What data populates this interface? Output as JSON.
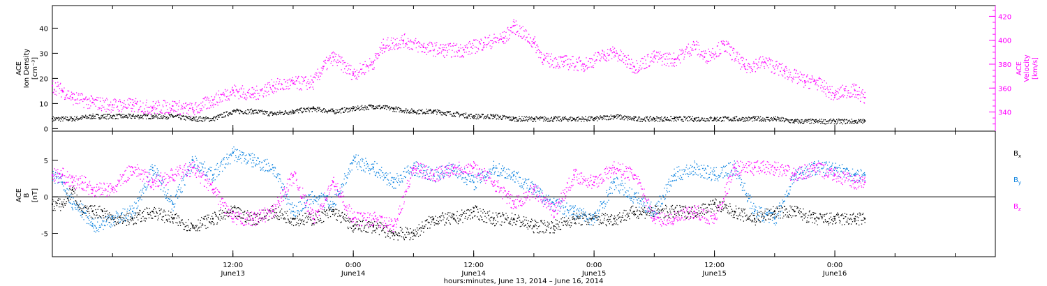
{
  "colors": {
    "magenta": "#ff00ff",
    "blue": "#0a82e0",
    "black": "#000000",
    "axis": "#000000"
  },
  "xaxis": {
    "title": "hours:minutes, June 13, 2014 – June 16, 2014",
    "range_hours": [
      0,
      94
    ],
    "unit": "hours since June 12, 2014 18:00",
    "ticks": [
      {
        "t": 18,
        "time": "12:00",
        "day": "June13"
      },
      {
        "t": 30,
        "time": "0:00",
        "day": "June14"
      },
      {
        "t": 42,
        "time": "12:00",
        "day": "June14"
      },
      {
        "t": 54,
        "time": "0:00",
        "day": "June15"
      },
      {
        "t": 66,
        "time": "12:00",
        "day": "June15"
      },
      {
        "t": 78,
        "time": "0:00",
        "day": "June16"
      }
    ]
  },
  "chart_data": [
    {
      "type": "scatter",
      "panel": "top",
      "ylabel_left": [
        "ACE",
        "Ion Density",
        "[cm⁻³]"
      ],
      "ylabel_right": [
        "ACE",
        "Velocity",
        "[km/s]"
      ],
      "ylim_left": [
        -1,
        49
      ],
      "ylim_right": [
        324,
        429
      ],
      "yticks_left": [
        0,
        10,
        20,
        30,
        40
      ],
      "yticks_right": [
        340,
        360,
        380,
        400,
        420
      ],
      "series": [
        {
          "axis": "left",
          "color": "black",
          "points": [
            [
              0,
              4
            ],
            [
              2,
              4
            ],
            [
              4,
              5
            ],
            [
              6,
              5
            ],
            [
              8,
              5
            ],
            [
              10,
              5
            ],
            [
              12,
              5
            ],
            [
              14,
              4
            ],
            [
              16,
              4
            ],
            [
              18,
              7
            ],
            [
              20,
              7
            ],
            [
              22,
              6
            ],
            [
              24,
              7
            ],
            [
              26,
              8
            ],
            [
              28,
              7
            ],
            [
              30,
              8
            ],
            [
              32,
              9
            ],
            [
              34,
              8
            ],
            [
              36,
              7
            ],
            [
              38,
              7
            ],
            [
              40,
              6
            ],
            [
              42,
              5
            ],
            [
              44,
              5
            ],
            [
              46,
              4
            ],
            [
              48,
              4
            ],
            [
              50,
              4
            ],
            [
              52,
              4
            ],
            [
              54,
              4
            ],
            [
              56,
              5
            ],
            [
              58,
              4
            ],
            [
              60,
              4
            ],
            [
              62,
              4
            ],
            [
              64,
              4
            ],
            [
              66,
              4
            ],
            [
              68,
              4
            ],
            [
              70,
              4
            ],
            [
              72,
              4
            ],
            [
              74,
              3
            ],
            [
              76,
              3
            ],
            [
              78,
              3
            ],
            [
              80,
              3
            ],
            [
              81,
              3
            ]
          ]
        },
        {
          "axis": "right",
          "color": "magenta",
          "points": [
            [
              0,
              362
            ],
            [
              1,
              358
            ],
            [
              2,
              352
            ],
            [
              4,
              348
            ],
            [
              6,
              346
            ],
            [
              8,
              346
            ],
            [
              10,
              344
            ],
            [
              12,
              345
            ],
            [
              14,
              342
            ],
            [
              16,
              350
            ],
            [
              18,
              358
            ],
            [
              20,
              355
            ],
            [
              22,
              362
            ],
            [
              24,
              364
            ],
            [
              26,
              365
            ],
            [
              27,
              378
            ],
            [
              28,
              386
            ],
            [
              30,
              372
            ],
            [
              32,
              382
            ],
            [
              33,
              396
            ],
            [
              35,
              400
            ],
            [
              37,
              394
            ],
            [
              39,
              392
            ],
            [
              41,
              392
            ],
            [
              43,
              398
            ],
            [
              45,
              402
            ],
            [
              46,
              412
            ],
            [
              48,
              398
            ],
            [
              49,
              384
            ],
            [
              51,
              382
            ],
            [
              53,
              380
            ],
            [
              55,
              388
            ],
            [
              56,
              390
            ],
            [
              58,
              378
            ],
            [
              60,
              386
            ],
            [
              62,
              384
            ],
            [
              64,
              396
            ],
            [
              65,
              386
            ],
            [
              67,
              396
            ],
            [
              69,
              378
            ],
            [
              71,
              382
            ],
            [
              73,
              374
            ],
            [
              75,
              366
            ],
            [
              76,
              366
            ],
            [
              78,
              354
            ],
            [
              79,
              358
            ],
            [
              80,
              358
            ],
            [
              81,
              352
            ]
          ]
        }
      ]
    },
    {
      "type": "scatter",
      "panel": "bottom",
      "ylabel_left": [
        "ACE",
        "B",
        "[nT]"
      ],
      "ylim": [
        -8.2,
        9.0
      ],
      "yticks": [
        -5,
        0,
        5
      ],
      "zero_line": true,
      "legend_placement": "right",
      "series": [
        {
          "name": "Bx",
          "legend": {
            "base": "B",
            "sub": "x"
          },
          "color": "black",
          "points": [
            [
              0,
              -1
            ],
            [
              1,
              -1
            ],
            [
              2,
              1
            ],
            [
              3,
              -2
            ],
            [
              4,
              -2
            ],
            [
              5,
              -2
            ],
            [
              6,
              -3
            ],
            [
              8,
              -3
            ],
            [
              10,
              -2
            ],
            [
              12,
              -3
            ],
            [
              14,
              -4
            ],
            [
              16,
              -3
            ],
            [
              18,
              -2
            ],
            [
              20,
              -3
            ],
            [
              22,
              -2
            ],
            [
              24,
              -3
            ],
            [
              26,
              -3
            ],
            [
              28,
              -2
            ],
            [
              30,
              -4
            ],
            [
              32,
              -4
            ],
            [
              34,
              -5
            ],
            [
              36,
              -5
            ],
            [
              38,
              -3
            ],
            [
              40,
              -3
            ],
            [
              42,
              -2
            ],
            [
              44,
              -3
            ],
            [
              46,
              -3
            ],
            [
              48,
              -4
            ],
            [
              50,
              -4
            ],
            [
              52,
              -3
            ],
            [
              54,
              -3
            ],
            [
              56,
              -3
            ],
            [
              58,
              -2
            ],
            [
              60,
              -2
            ],
            [
              62,
              -2
            ],
            [
              64,
              -2
            ],
            [
              66,
              -1
            ],
            [
              68,
              -2
            ],
            [
              70,
              -3
            ],
            [
              72,
              -2
            ],
            [
              74,
              -2
            ],
            [
              76,
              -3
            ],
            [
              78,
              -3
            ],
            [
              80,
              -3
            ],
            [
              81,
              -3
            ]
          ]
        },
        {
          "name": "By",
          "legend": {
            "base": "B",
            "sub": "y"
          },
          "color": "blue",
          "points": [
            [
              0,
              3
            ],
            [
              1,
              2
            ],
            [
              2,
              -1
            ],
            [
              3,
              -2
            ],
            [
              4,
              -4
            ],
            [
              6,
              -3
            ],
            [
              8,
              -2
            ],
            [
              10,
              4
            ],
            [
              12,
              -1
            ],
            [
              14,
              5
            ],
            [
              16,
              3
            ],
            [
              18,
              6
            ],
            [
              20,
              5
            ],
            [
              22,
              4
            ],
            [
              24,
              -2
            ],
            [
              26,
              0
            ],
            [
              28,
              -1
            ],
            [
              30,
              5
            ],
            [
              32,
              4
            ],
            [
              34,
              2
            ],
            [
              36,
              4
            ],
            [
              38,
              3
            ],
            [
              40,
              4
            ],
            [
              42,
              2
            ],
            [
              44,
              4
            ],
            [
              46,
              3
            ],
            [
              48,
              1
            ],
            [
              50,
              -1
            ],
            [
              52,
              -2
            ],
            [
              54,
              -3
            ],
            [
              56,
              2
            ],
            [
              58,
              0
            ],
            [
              60,
              -2
            ],
            [
              62,
              3
            ],
            [
              64,
              4
            ],
            [
              66,
              3
            ],
            [
              68,
              4
            ],
            [
              70,
              -2
            ],
            [
              72,
              -3
            ],
            [
              74,
              3
            ],
            [
              76,
              4
            ],
            [
              78,
              4
            ],
            [
              80,
              3
            ],
            [
              81,
              3
            ]
          ]
        },
        {
          "name": "Bz",
          "legend": {
            "base": "B",
            "sub": "z"
          },
          "color": "magenta",
          "points": [
            [
              0,
              3
            ],
            [
              1,
              3
            ],
            [
              2,
              2
            ],
            [
              3,
              2
            ],
            [
              4,
              1
            ],
            [
              6,
              1
            ],
            [
              8,
              4
            ],
            [
              10,
              2
            ],
            [
              12,
              3
            ],
            [
              14,
              4
            ],
            [
              16,
              1
            ],
            [
              18,
              -3
            ],
            [
              20,
              -3
            ],
            [
              22,
              -2
            ],
            [
              24,
              3
            ],
            [
              26,
              -3
            ],
            [
              28,
              2
            ],
            [
              30,
              -3
            ],
            [
              32,
              -3
            ],
            [
              34,
              -4
            ],
            [
              36,
              4
            ],
            [
              38,
              3
            ],
            [
              40,
              4
            ],
            [
              42,
              4
            ],
            [
              44,
              2
            ],
            [
              46,
              -1
            ],
            [
              48,
              1
            ],
            [
              50,
              -2
            ],
            [
              52,
              3
            ],
            [
              54,
              2
            ],
            [
              56,
              4
            ],
            [
              58,
              3
            ],
            [
              60,
              -3
            ],
            [
              62,
              -3
            ],
            [
              64,
              -2
            ],
            [
              66,
              -3
            ],
            [
              68,
              4
            ],
            [
              70,
              4
            ],
            [
              72,
              4
            ],
            [
              74,
              3
            ],
            [
              76,
              4
            ],
            [
              78,
              3
            ],
            [
              80,
              2
            ],
            [
              81,
              2
            ]
          ]
        }
      ]
    }
  ]
}
